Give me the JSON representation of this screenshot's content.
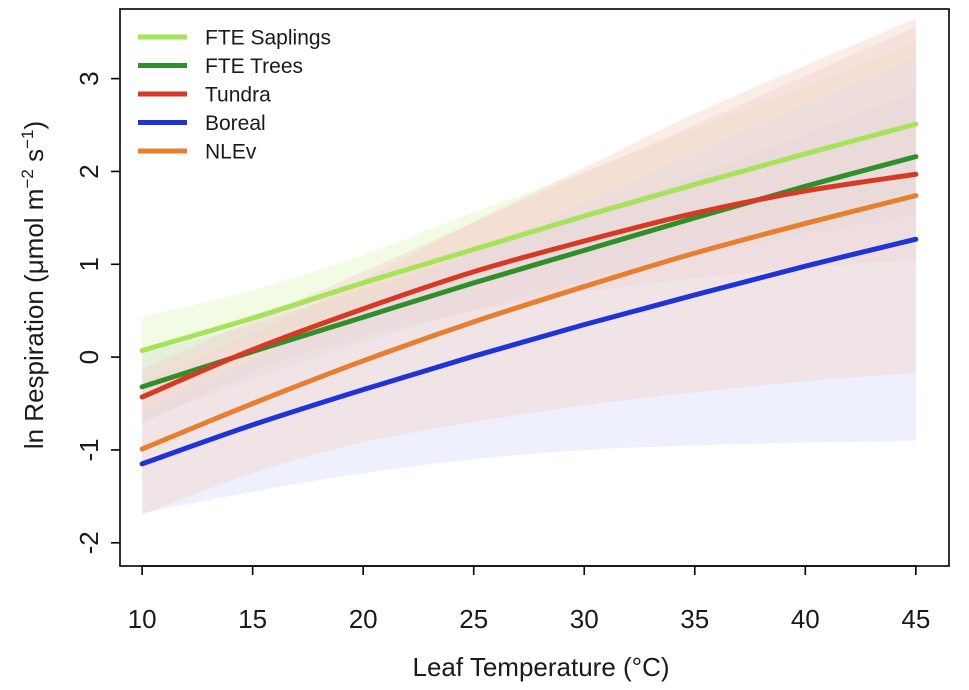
{
  "chart_data": {
    "type": "line",
    "title": "",
    "xlabel": "Leaf Temperature (°C)",
    "ylabel_parts": {
      "prefix": "ln Respiration (",
      "mu": "μ",
      "mol": "mol m",
      "m_exp": "−2",
      "s": " s",
      "s_exp": "−1",
      "suffix": ")"
    },
    "xlim": [
      9,
      46.5
    ],
    "ylim": [
      -2.25,
      3.75
    ],
    "x_ticks": [
      10,
      15,
      20,
      25,
      30,
      35,
      40,
      45
    ],
    "x_tick_labels": [
      "10",
      "15",
      "20",
      "25",
      "30",
      "35",
      "40",
      "45"
    ],
    "y_ticks": [
      -2,
      -1,
      0,
      1,
      2,
      3
    ],
    "y_tick_labels": [
      "-2",
      "-1",
      "0",
      "1",
      "2",
      "3"
    ],
    "x": [
      10,
      15,
      20,
      25,
      30,
      35,
      40,
      45
    ],
    "legend_position": "top-left",
    "series": [
      {
        "name": "FTE Saplings",
        "color": "#a6e25a",
        "band_color": "#dff7c2",
        "values": [
          0.07,
          0.42,
          0.8,
          1.16,
          1.52,
          1.86,
          2.19,
          2.51
        ],
        "lower": [
          -0.3,
          0.18,
          0.5,
          0.79,
          1.06,
          1.32,
          1.56,
          1.78
        ],
        "upper": [
          0.43,
          0.72,
          1.1,
          1.56,
          2.0,
          2.46,
          2.92,
          3.4
        ]
      },
      {
        "name": "FTE Trees",
        "color": "#2f8f2a",
        "band_color": "#cfe3cf",
        "values": [
          -0.32,
          0.06,
          0.43,
          0.8,
          1.15,
          1.5,
          1.84,
          2.16
        ],
        "lower": [
          -0.68,
          -0.24,
          0.16,
          0.51,
          0.82,
          1.09,
          1.32,
          1.52
        ],
        "upper": [
          0.04,
          0.36,
          0.73,
          1.12,
          1.52,
          1.95,
          2.4,
          2.86
        ]
      },
      {
        "name": "Tundra",
        "color": "#d63a24",
        "band_color": "#f6cccc",
        "values": [
          -0.43,
          0.08,
          0.52,
          0.92,
          1.25,
          1.55,
          1.79,
          1.97
        ],
        "lower": [
          -0.72,
          -0.16,
          0.22,
          0.5,
          0.7,
          0.85,
          0.96,
          1.05
        ],
        "upper": [
          -0.13,
          0.4,
          0.92,
          1.45,
          1.98,
          2.5,
          3.03,
          3.56
        ]
      },
      {
        "name": "Boreal",
        "color": "#1f33d6",
        "band_color": "#d9dcfb",
        "values": [
          -1.15,
          -0.73,
          -0.35,
          0.01,
          0.35,
          0.67,
          0.98,
          1.27
        ],
        "lower": [
          -1.68,
          -1.45,
          -1.25,
          -1.1,
          -1.0,
          -0.95,
          -0.92,
          -0.9
        ],
        "upper": [
          -0.6,
          -0.02,
          0.55,
          1.12,
          1.66,
          2.2,
          2.72,
          3.22
        ]
      },
      {
        "name": "NLEv",
        "color": "#e68030",
        "band_color": "#f3d3c8",
        "values": [
          -0.99,
          -0.5,
          -0.04,
          0.38,
          0.76,
          1.12,
          1.44,
          1.74
        ],
        "lower": [
          -1.7,
          -1.25,
          -0.92,
          -0.7,
          -0.52,
          -0.38,
          -0.26,
          -0.17
        ],
        "upper": [
          -0.28,
          0.25,
          0.84,
          1.46,
          2.04,
          2.62,
          3.14,
          3.65
        ]
      }
    ]
  }
}
